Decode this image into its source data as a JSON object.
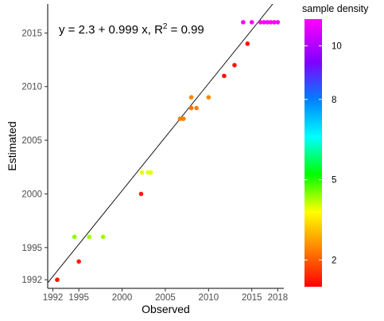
{
  "chart_data": {
    "type": "scatter",
    "xlabel": "Observed",
    "ylabel": "Estimated",
    "xlim": [
      1991.4,
      2018.7
    ],
    "ylim": [
      1991.2,
      2017.7
    ],
    "x_ticks": [
      1992,
      1995,
      2000,
      2005,
      2010,
      2015,
      2018
    ],
    "y_ticks": [
      1992,
      1995,
      2000,
      2005,
      2010,
      2015
    ],
    "grid": false,
    "annotation": {
      "prefix": "y = 2.3 + 0.999 x, R",
      "superscript": "2",
      "suffix": " = 0.99"
    },
    "fit_line": {
      "intercept": 2.3,
      "slope": 0.999
    },
    "legend": {
      "title": "sample density",
      "position": "right",
      "range": [
        1,
        11
      ],
      "ticks": [
        2,
        5,
        8,
        10
      ],
      "colors": [
        "#ff0000",
        "#ff8000",
        "#ffff00",
        "#00ff00",
        "#00ffff",
        "#0080ff",
        "#8000ff",
        "#ff00ff"
      ]
    },
    "points": [
      {
        "x": 1992.5,
        "y": 1992.0,
        "density": 1.2
      },
      {
        "x": 1995.0,
        "y": 1993.7,
        "density": 1.3
      },
      {
        "x": 1994.5,
        "y": 1996.0,
        "density": 4.5
      },
      {
        "x": 1996.2,
        "y": 1996.0,
        "density": 4.4
      },
      {
        "x": 1997.8,
        "y": 1996.0,
        "density": 4.4
      },
      {
        "x": 2002.2,
        "y": 2000.0,
        "density": 1.3
      },
      {
        "x": 2002.3,
        "y": 2002.0,
        "density": 4.0
      },
      {
        "x": 2003.0,
        "y": 2002.0,
        "density": 4.0
      },
      {
        "x": 2003.3,
        "y": 2002.0,
        "density": 4.0
      },
      {
        "x": 2006.7,
        "y": 2007.0,
        "density": 2.4
      },
      {
        "x": 2007.1,
        "y": 2007.0,
        "density": 2.4
      },
      {
        "x": 2008.0,
        "y": 2008.0,
        "density": 2.3
      },
      {
        "x": 2008.6,
        "y": 2008.0,
        "density": 2.4
      },
      {
        "x": 2008.0,
        "y": 2009.0,
        "density": 2.5
      },
      {
        "x": 2010.0,
        "y": 2009.0,
        "density": 2.5
      },
      {
        "x": 2011.8,
        "y": 2011.0,
        "density": 1.2
      },
      {
        "x": 2013.0,
        "y": 2012.0,
        "density": 1.2
      },
      {
        "x": 2014.5,
        "y": 2014.0,
        "density": 1.2
      },
      {
        "x": 2014.0,
        "y": 2016.0,
        "density": 11.0
      },
      {
        "x": 2015.0,
        "y": 2016.0,
        "density": 11.0
      },
      {
        "x": 2016.0,
        "y": 2016.0,
        "density": 11.0
      },
      {
        "x": 2016.4,
        "y": 2016.0,
        "density": 11.0
      },
      {
        "x": 2016.8,
        "y": 2016.0,
        "density": 11.0
      },
      {
        "x": 2017.2,
        "y": 2016.0,
        "density": 11.0
      },
      {
        "x": 2017.6,
        "y": 2016.0,
        "density": 11.0
      },
      {
        "x": 2018.0,
        "y": 2016.0,
        "density": 11.0
      }
    ]
  }
}
